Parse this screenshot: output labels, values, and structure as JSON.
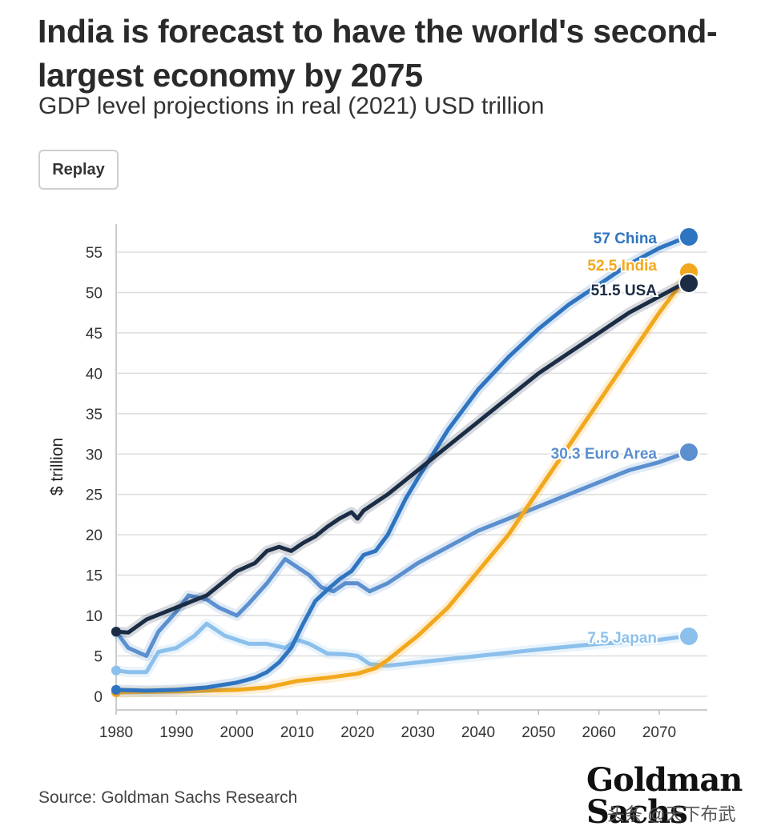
{
  "title": "India is forecast to have the world's second-largest economy by 2075",
  "subtitle": "GDP level projections in real (2021) USD trillion",
  "replay_label": "Replay",
  "source": "Source: Goldman Sachs Research",
  "logo": {
    "line1": "Goldman",
    "line2": "Sachs"
  },
  "watermark": "头条 @天下布武",
  "chart_data": {
    "type": "line",
    "ylabel": "$ trillion",
    "xlim": [
      1980,
      2078
    ],
    "ylim": [
      0,
      59
    ],
    "xticks": [
      1980,
      1990,
      2000,
      2010,
      2020,
      2030,
      2040,
      2050,
      2060,
      2070
    ],
    "yticks": [
      0,
      5,
      10,
      15,
      20,
      25,
      30,
      35,
      40,
      45,
      50,
      55
    ],
    "grid": true,
    "legend": "end-labels",
    "series": [
      {
        "name": "China",
        "end_label": "57 China",
        "color": "#2f74c0",
        "end_value": 57,
        "x": [
          1980,
          1985,
          1990,
          1995,
          2000,
          2003,
          2005,
          2007,
          2009,
          2011,
          2013,
          2015,
          2017,
          2019,
          2021,
          2023,
          2025,
          2028,
          2030,
          2035,
          2040,
          2045,
          2050,
          2055,
          2060,
          2065,
          2070,
          2075
        ],
        "y": [
          0.8,
          0.7,
          0.8,
          1.1,
          1.7,
          2.3,
          3.0,
          4.2,
          6.0,
          9.0,
          11.8,
          13.2,
          14.5,
          15.5,
          17.5,
          18.0,
          20.0,
          24.5,
          27.0,
          33.0,
          38.0,
          42.0,
          45.5,
          48.5,
          51.0,
          53.5,
          55.5,
          57.0
        ]
      },
      {
        "name": "India",
        "end_label": "52.5 India",
        "color": "#f2a81d",
        "end_value": 52.5,
        "x": [
          1980,
          1990,
          2000,
          2005,
          2010,
          2015,
          2020,
          2023,
          2025,
          2030,
          2035,
          2040,
          2045,
          2050,
          2055,
          2060,
          2065,
          2070,
          2075
        ],
        "y": [
          0.5,
          0.6,
          0.8,
          1.1,
          1.9,
          2.3,
          2.8,
          3.5,
          4.5,
          7.5,
          11.0,
          15.5,
          20.0,
          25.5,
          31.0,
          36.5,
          42.0,
          47.5,
          52.5
        ]
      },
      {
        "name": "USA",
        "end_label": "51.5 USA",
        "color": "#1b2c45",
        "end_value": 51.5,
        "x": [
          1980,
          1982,
          1985,
          1990,
          1995,
          2000,
          2003,
          2005,
          2007,
          2009,
          2011,
          2013,
          2015,
          2017,
          2019,
          2020,
          2021,
          2023,
          2025,
          2030,
          2035,
          2040,
          2045,
          2050,
          2055,
          2060,
          2065,
          2070,
          2075
        ],
        "y": [
          8.0,
          7.9,
          9.5,
          11.0,
          12.5,
          15.5,
          16.5,
          18.0,
          18.5,
          18.0,
          19.0,
          19.8,
          21.0,
          22.0,
          22.8,
          22.0,
          23.0,
          24.0,
          25.0,
          28.0,
          31.0,
          34.0,
          37.0,
          40.0,
          42.5,
          45.0,
          47.5,
          49.5,
          51.5
        ]
      },
      {
        "name": "Euro Area",
        "end_label": "30.3 Euro Area",
        "color": "#5b8fcf",
        "end_value": 30.3,
        "x": [
          1980,
          1982,
          1985,
          1987,
          1990,
          1992,
          1995,
          1997,
          2000,
          2002,
          2005,
          2008,
          2010,
          2012,
          2014,
          2016,
          2018,
          2020,
          2022,
          2025,
          2030,
          2035,
          2040,
          2045,
          2050,
          2055,
          2060,
          2065,
          2070,
          2075
        ],
        "y": [
          8.0,
          6.0,
          5.0,
          8.0,
          10.5,
          12.5,
          12.0,
          11.0,
          10.0,
          11.5,
          14.0,
          17.0,
          16.0,
          15.0,
          13.5,
          13.0,
          14.0,
          14.0,
          13.0,
          14.0,
          16.5,
          18.5,
          20.5,
          22.0,
          23.5,
          25.0,
          26.5,
          28.0,
          29.0,
          30.3
        ]
      },
      {
        "name": "Japan",
        "end_label": "7.5 Japan",
        "color": "#8cc0ec",
        "end_value": 7.5,
        "x": [
          1980,
          1982,
          1985,
          1987,
          1990,
          1993,
          1995,
          1998,
          2000,
          2002,
          2005,
          2008,
          2010,
          2012,
          2015,
          2018,
          2020,
          2022,
          2025,
          2030,
          2040,
          2050,
          2060,
          2070,
          2075
        ],
        "y": [
          3.2,
          3.0,
          3.0,
          5.5,
          6.0,
          7.5,
          9.0,
          7.5,
          7.0,
          6.5,
          6.5,
          6.0,
          7.0,
          6.5,
          5.3,
          5.2,
          5.0,
          4.0,
          3.8,
          4.2,
          5.0,
          5.8,
          6.5,
          7.0,
          7.5
        ]
      }
    ]
  }
}
